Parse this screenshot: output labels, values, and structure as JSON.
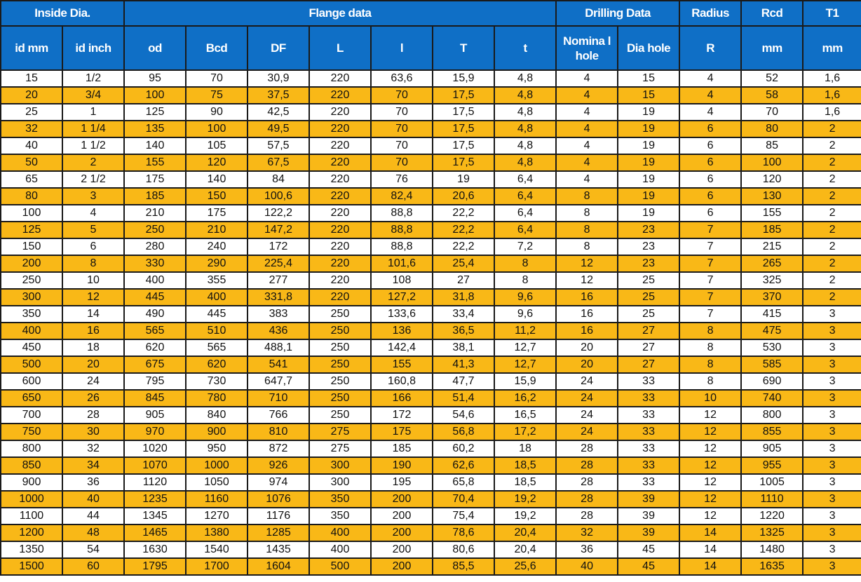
{
  "table": {
    "groups": [
      {
        "label": "Inside Dia.",
        "span": 2
      },
      {
        "label": "Flange data",
        "span": 7
      },
      {
        "label": "Drilling Data",
        "span": 2
      },
      {
        "label": "Radius",
        "span": 1
      },
      {
        "label": "Rcd",
        "span": 1
      },
      {
        "label": "T1",
        "span": 1
      }
    ],
    "columns": [
      "id mm",
      "id inch",
      "od",
      "Bcd",
      "DF",
      "L",
      "l",
      "T",
      "t",
      "Nomina l hole",
      "Dia hole",
      "R",
      "mm",
      "mm"
    ],
    "rows": [
      [
        "15",
        "1/2",
        "95",
        "70",
        "30,9",
        "220",
        "63,6",
        "15,9",
        "4,8",
        "4",
        "15",
        "4",
        "52",
        "1,6"
      ],
      [
        "20",
        "3/4",
        "100",
        "75",
        "37,5",
        "220",
        "70",
        "17,5",
        "4,8",
        "4",
        "15",
        "4",
        "58",
        "1,6"
      ],
      [
        "25",
        "1",
        "125",
        "90",
        "42,5",
        "220",
        "70",
        "17,5",
        "4,8",
        "4",
        "19",
        "4",
        "70",
        "1,6"
      ],
      [
        "32",
        "1 1/4",
        "135",
        "100",
        "49,5",
        "220",
        "70",
        "17,5",
        "4,8",
        "4",
        "19",
        "6",
        "80",
        "2"
      ],
      [
        "40",
        "1 1/2",
        "140",
        "105",
        "57,5",
        "220",
        "70",
        "17,5",
        "4,8",
        "4",
        "19",
        "6",
        "85",
        "2"
      ],
      [
        "50",
        "2",
        "155",
        "120",
        "67,5",
        "220",
        "70",
        "17,5",
        "4,8",
        "4",
        "19",
        "6",
        "100",
        "2"
      ],
      [
        "65",
        "2 1/2",
        "175",
        "140",
        "84",
        "220",
        "76",
        "19",
        "6,4",
        "4",
        "19",
        "6",
        "120",
        "2"
      ],
      [
        "80",
        "3",
        "185",
        "150",
        "100,6",
        "220",
        "82,4",
        "20,6",
        "6,4",
        "8",
        "19",
        "6",
        "130",
        "2"
      ],
      [
        "100",
        "4",
        "210",
        "175",
        "122,2",
        "220",
        "88,8",
        "22,2",
        "6,4",
        "8",
        "19",
        "6",
        "155",
        "2"
      ],
      [
        "125",
        "5",
        "250",
        "210",
        "147,2",
        "220",
        "88,8",
        "22,2",
        "6,4",
        "8",
        "23",
        "7",
        "185",
        "2"
      ],
      [
        "150",
        "6",
        "280",
        "240",
        "172",
        "220",
        "88,8",
        "22,2",
        "7,2",
        "8",
        "23",
        "7",
        "215",
        "2"
      ],
      [
        "200",
        "8",
        "330",
        "290",
        "225,4",
        "220",
        "101,6",
        "25,4",
        "8",
        "12",
        "23",
        "7",
        "265",
        "2"
      ],
      [
        "250",
        "10",
        "400",
        "355",
        "277",
        "220",
        "108",
        "27",
        "8",
        "12",
        "25",
        "7",
        "325",
        "2"
      ],
      [
        "300",
        "12",
        "445",
        "400",
        "331,8",
        "220",
        "127,2",
        "31,8",
        "9,6",
        "16",
        "25",
        "7",
        "370",
        "2"
      ],
      [
        "350",
        "14",
        "490",
        "445",
        "383",
        "250",
        "133,6",
        "33,4",
        "9,6",
        "16",
        "25",
        "7",
        "415",
        "3"
      ],
      [
        "400",
        "16",
        "565",
        "510",
        "436",
        "250",
        "136",
        "36,5",
        "11,2",
        "16",
        "27",
        "8",
        "475",
        "3"
      ],
      [
        "450",
        "18",
        "620",
        "565",
        "488,1",
        "250",
        "142,4",
        "38,1",
        "12,7",
        "20",
        "27",
        "8",
        "530",
        "3"
      ],
      [
        "500",
        "20",
        "675",
        "620",
        "541",
        "250",
        "155",
        "41,3",
        "12,7",
        "20",
        "27",
        "8",
        "585",
        "3"
      ],
      [
        "600",
        "24",
        "795",
        "730",
        "647,7",
        "250",
        "160,8",
        "47,7",
        "15,9",
        "24",
        "33",
        "8",
        "690",
        "3"
      ],
      [
        "650",
        "26",
        "845",
        "780",
        "710",
        "250",
        "166",
        "51,4",
        "16,2",
        "24",
        "33",
        "10",
        "740",
        "3"
      ],
      [
        "700",
        "28",
        "905",
        "840",
        "766",
        "250",
        "172",
        "54,6",
        "16,5",
        "24",
        "33",
        "12",
        "800",
        "3"
      ],
      [
        "750",
        "30",
        "970",
        "900",
        "810",
        "275",
        "175",
        "56,8",
        "17,2",
        "24",
        "33",
        "12",
        "855",
        "3"
      ],
      [
        "800",
        "32",
        "1020",
        "950",
        "872",
        "275",
        "185",
        "60,2",
        "18",
        "28",
        "33",
        "12",
        "905",
        "3"
      ],
      [
        "850",
        "34",
        "1070",
        "1000",
        "926",
        "300",
        "190",
        "62,6",
        "18,5",
        "28",
        "33",
        "12",
        "955",
        "3"
      ],
      [
        "900",
        "36",
        "1120",
        "1050",
        "974",
        "300",
        "195",
        "65,8",
        "18,5",
        "28",
        "33",
        "12",
        "1005",
        "3"
      ],
      [
        "1000",
        "40",
        "1235",
        "1160",
        "1076",
        "350",
        "200",
        "70,4",
        "19,2",
        "28",
        "39",
        "12",
        "1110",
        "3"
      ],
      [
        "1100",
        "44",
        "1345",
        "1270",
        "1176",
        "350",
        "200",
        "75,4",
        "19,2",
        "28",
        "39",
        "12",
        "1220",
        "3"
      ],
      [
        "1200",
        "48",
        "1465",
        "1380",
        "1285",
        "400",
        "200",
        "78,6",
        "20,4",
        "32",
        "39",
        "14",
        "1325",
        "3"
      ],
      [
        "1350",
        "54",
        "1630",
        "1540",
        "1435",
        "400",
        "200",
        "80,6",
        "20,4",
        "36",
        "45",
        "14",
        "1480",
        "3"
      ],
      [
        "1500",
        "60",
        "1795",
        "1700",
        "1604",
        "500",
        "200",
        "85,5",
        "25,6",
        "40",
        "45",
        "14",
        "1635",
        "3"
      ]
    ]
  },
  "colors": {
    "header_bg": "#0f6fc6",
    "header_text": "#ffffff",
    "row_alt_bg": "#f9b817",
    "row_bg": "#ffffff",
    "grid": "#1a1a1a"
  }
}
